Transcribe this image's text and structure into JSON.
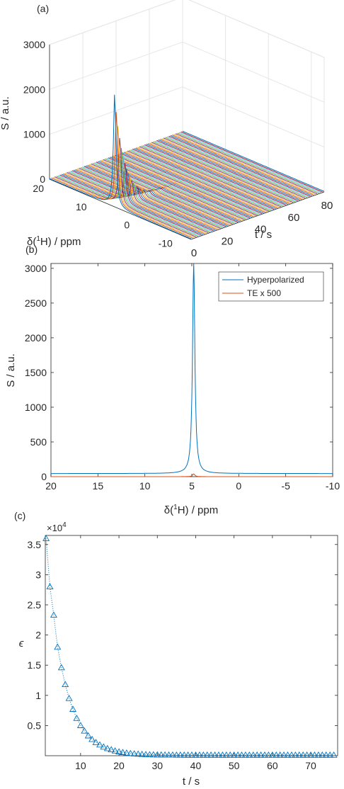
{
  "panels": [
    {
      "id": "a",
      "label": "(a)"
    },
    {
      "id": "b",
      "label": "(b)"
    },
    {
      "id": "c",
      "label": "(c)"
    }
  ],
  "colors": {
    "blue": "#0072BD",
    "orange": "#D95319",
    "yellow": "#EDB120",
    "purple": "#7E2F8E",
    "green": "#77AC30",
    "cyan": "#4DBEEE",
    "red": "#A2142F",
    "axis": "#262626",
    "grid": "#E6E6E6"
  },
  "chart_data": [
    {
      "type": "line",
      "panel": "(a)",
      "view": "3d-waterfall",
      "xlabel_prefix": "δ(",
      "xlabel_sup": "1",
      "xlabel_suffix": "H) / ppm",
      "ylabel": "t / s",
      "zlabel": "S / a.u.",
      "xlim": [
        -13,
        20
      ],
      "xticks": [
        20,
        10,
        0,
        -10
      ],
      "ylim": [
        0,
        80
      ],
      "yticks": [
        0,
        20,
        40,
        60,
        80
      ],
      "zlim": [
        0,
        3000
      ],
      "zticks": [
        0,
        1000,
        2000,
        3000
      ],
      "grid": true,
      "peak_ppm": 4.8,
      "series_count": 78,
      "first_peak_value": 2600,
      "decay_time_constant_s": 6,
      "color_order": [
        "#0072BD",
        "#D95319",
        "#EDB120",
        "#7E2F8E",
        "#77AC30",
        "#4DBEEE",
        "#A2142F"
      ]
    },
    {
      "type": "line",
      "panel": "(b)",
      "xlabel_prefix": "δ(",
      "xlabel_sup": "1",
      "xlabel_suffix": "H) / ppm",
      "ylabel": "S / a.u.",
      "xlim": [
        20,
        -10
      ],
      "xticks": [
        20,
        15,
        10,
        5,
        0,
        -5,
        -10
      ],
      "ylim": [
        0,
        3070
      ],
      "yticks": [
        0,
        500,
        1000,
        1500,
        2000,
        2500,
        3000
      ],
      "legend_position": "top-right",
      "series": [
        {
          "name": "Hyperpolarized",
          "color": "#0072BD",
          "peak_ppm": 4.8,
          "peak_value": 3070,
          "baseline": 45,
          "linewidth_ppm": 0.15
        },
        {
          "name": "TE x 500",
          "color": "#D95319",
          "peak_ppm": 4.8,
          "peak_value": 40,
          "baseline": 0,
          "linewidth_ppm": 0.15
        }
      ]
    },
    {
      "type": "scatter",
      "panel": "(c)",
      "xlabel": "t / s",
      "ylabel": "ϵ",
      "exponent_label": "×10",
      "exponent_power": "4",
      "xlim": [
        0.8,
        77
      ],
      "xticks": [
        10,
        20,
        30,
        40,
        50,
        60,
        70
      ],
      "ylim": [
        0,
        3.65
      ],
      "yticks": [
        0.5,
        1,
        1.5,
        2,
        2.5,
        3,
        3.5
      ],
      "marker": "triangle",
      "line_style": "dotted",
      "color": "#0072BD",
      "x": [
        1,
        2,
        3,
        4,
        5,
        6,
        7,
        8,
        9,
        10,
        11,
        12,
        13,
        14,
        15,
        16,
        17,
        18,
        19,
        20,
        21,
        22,
        23,
        24,
        25,
        26,
        27,
        28,
        29,
        30,
        31,
        32,
        33,
        34,
        35,
        36,
        37,
        38,
        39,
        40,
        41,
        42,
        43,
        44,
        45,
        46,
        47,
        48,
        49,
        50,
        51,
        52,
        53,
        54,
        55,
        56,
        57,
        58,
        59,
        60,
        61,
        62,
        63,
        64,
        65,
        66,
        67,
        68,
        69,
        70,
        71,
        72,
        73,
        74,
        75,
        76
      ],
      "y": [
        3.6,
        2.8,
        2.33,
        1.8,
        1.46,
        1.18,
        0.95,
        0.77,
        0.62,
        0.5,
        0.41,
        0.33,
        0.27,
        0.22,
        0.18,
        0.145,
        0.12,
        0.1,
        0.08,
        0.065,
        0.055,
        0.045,
        0.038,
        0.032,
        0.027,
        0.023,
        0.02,
        0.018,
        0.016,
        0.015,
        0.014,
        0.013,
        0.012,
        0.012,
        0.011,
        0.011,
        0.01,
        0.01,
        0.01,
        0.01,
        0.01,
        0.01,
        0.01,
        0.01,
        0.01,
        0.01,
        0.01,
        0.01,
        0.01,
        0.01,
        0.01,
        0.01,
        0.01,
        0.01,
        0.01,
        0.01,
        0.01,
        0.01,
        0.01,
        0.01,
        0.01,
        0.01,
        0.01,
        0.01,
        0.01,
        0.01,
        0.01,
        0.01,
        0.01,
        0.01,
        0.01,
        0.01,
        0.01,
        0.01,
        0.01,
        0.01
      ]
    }
  ]
}
